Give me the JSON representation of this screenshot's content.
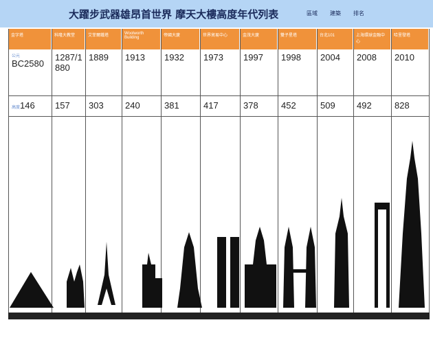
{
  "header": {
    "title": "大躍步武器雄昂首世界 摩天大樓高度年代列表",
    "notes": [
      "區域",
      "建築",
      "排名"
    ]
  },
  "table": {
    "headers": [
      "金字塔",
      "科隆大教堂",
      "艾菲爾鐵塔",
      "Woolworth Building",
      "帝國大廈",
      "世界貿易中心",
      "金茂大廈",
      "雙子星塔",
      "台北101",
      "上海環球金融中心",
      "哈里發塔"
    ],
    "row_labels": [
      "公元",
      "高度"
    ],
    "rows": [
      [
        "BC2580",
        "1287/1880",
        "1889",
        "1913",
        "1932",
        "1973",
        "1997",
        "1998",
        "2004",
        "2008",
        "2010"
      ],
      [
        "146",
        "157",
        "303",
        "240",
        "381",
        "417",
        "378",
        "452",
        "509",
        "492",
        "828"
      ]
    ]
  }
}
